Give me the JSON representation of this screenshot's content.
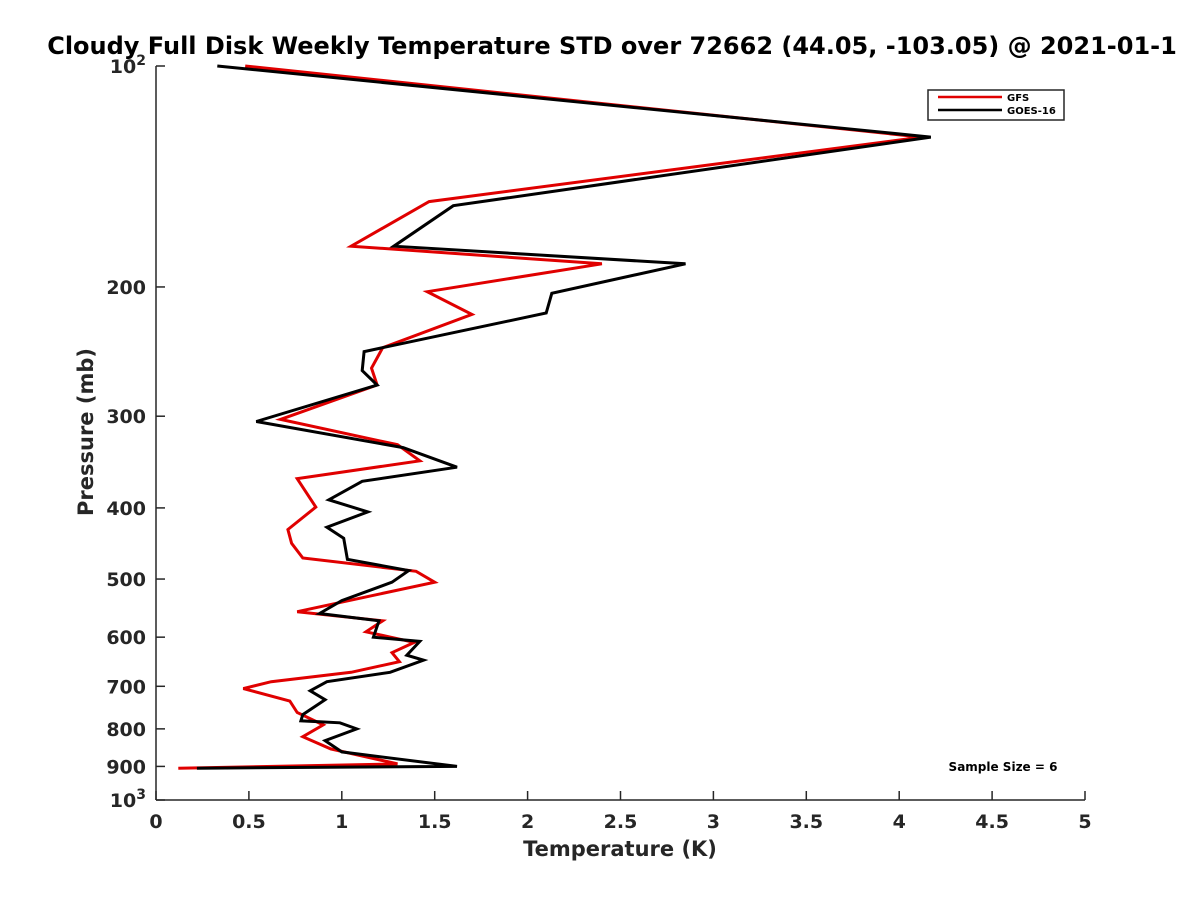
{
  "chart_data": {
    "type": "line",
    "title": "Cloudy Full Disk Weekly Temperature STD over 72662 (44.05, -103.05) @ 2021-01-1",
    "xlabel": "Temperature (K)",
    "ylabel": "Pressure (mb)",
    "xlim": [
      0,
      5
    ],
    "ylim": [
      100,
      1000
    ],
    "y_scale": "log",
    "y_reversed": true,
    "grid": false,
    "legend_position": "top-right",
    "x_ticks": [
      0,
      0.5,
      1,
      1.5,
      2,
      2.5,
      3,
      3.5,
      4,
      4.5,
      5
    ],
    "x_tick_labels": [
      "0",
      "0.5",
      "1",
      "1.5",
      "2",
      "2.5",
      "3",
      "3.5",
      "4",
      "4.5",
      "5"
    ],
    "y_ticks": [
      200,
      300,
      400,
      500,
      600,
      700,
      800,
      900
    ],
    "y_tick_labels": [
      "200",
      "300",
      "400",
      "500",
      "600",
      "700",
      "800",
      "900"
    ],
    "y_decade_ticks": [
      {
        "value": 100,
        "base": "10",
        "exp": "2"
      },
      {
        "value": 1000,
        "base": "10",
        "exp": "3"
      }
    ],
    "annotation": "Sample Size = 6",
    "series": [
      {
        "name": "GFS",
        "color": "#e00000",
        "points": [
          [
            0.48,
            100
          ],
          [
            4.12,
            125
          ],
          [
            1.47,
            153
          ],
          [
            1.05,
            176
          ],
          [
            2.4,
            186
          ],
          [
            1.46,
            203
          ],
          [
            1.7,
            218
          ],
          [
            1.22,
            242
          ],
          [
            1.16,
            258
          ],
          [
            1.19,
            272
          ],
          [
            0.67,
            303
          ],
          [
            1.3,
            328
          ],
          [
            1.42,
            345
          ],
          [
            0.76,
            365
          ],
          [
            0.86,
            399
          ],
          [
            0.71,
            428
          ],
          [
            0.73,
            447
          ],
          [
            0.79,
            468
          ],
          [
            1.4,
            488
          ],
          [
            1.5,
            505
          ],
          [
            0.76,
            554
          ],
          [
            1.22,
            570
          ],
          [
            1.13,
            590
          ],
          [
            1.39,
            610
          ],
          [
            1.27,
            630
          ],
          [
            1.31,
            648
          ],
          [
            1.05,
            670
          ],
          [
            0.62,
            690
          ],
          [
            0.47,
            705
          ],
          [
            0.72,
            733
          ],
          [
            0.76,
            760
          ],
          [
            0.9,
            790
          ],
          [
            0.79,
            820
          ],
          [
            0.94,
            852
          ],
          [
            1.3,
            893
          ],
          [
            0.12,
            905
          ]
        ]
      },
      {
        "name": "GOES-16",
        "color": "#000000",
        "points": [
          [
            0.33,
            100
          ],
          [
            4.17,
            125
          ],
          [
            1.6,
            155
          ],
          [
            1.28,
            176
          ],
          [
            2.85,
            186
          ],
          [
            2.13,
            204
          ],
          [
            2.1,
            217
          ],
          [
            1.12,
            245
          ],
          [
            1.11,
            260
          ],
          [
            1.19,
            272
          ],
          [
            0.54,
            305
          ],
          [
            1.33,
            331
          ],
          [
            1.62,
            352
          ],
          [
            1.11,
            368
          ],
          [
            0.93,
            390
          ],
          [
            1.14,
            405
          ],
          [
            0.92,
            425
          ],
          [
            1.01,
            440
          ],
          [
            1.03,
            470
          ],
          [
            1.36,
            487
          ],
          [
            1.27,
            505
          ],
          [
            1.0,
            535
          ],
          [
            0.88,
            557
          ],
          [
            1.2,
            570
          ],
          [
            1.17,
            600
          ],
          [
            1.42,
            608
          ],
          [
            1.35,
            635
          ],
          [
            1.44,
            645
          ],
          [
            1.26,
            670
          ],
          [
            0.92,
            690
          ],
          [
            0.83,
            710
          ],
          [
            0.91,
            730
          ],
          [
            0.79,
            765
          ],
          [
            0.78,
            780
          ],
          [
            0.99,
            785
          ],
          [
            1.08,
            800
          ],
          [
            0.91,
            830
          ],
          [
            1.0,
            860
          ],
          [
            1.62,
            900
          ],
          [
            0.22,
            905
          ]
        ]
      }
    ]
  }
}
